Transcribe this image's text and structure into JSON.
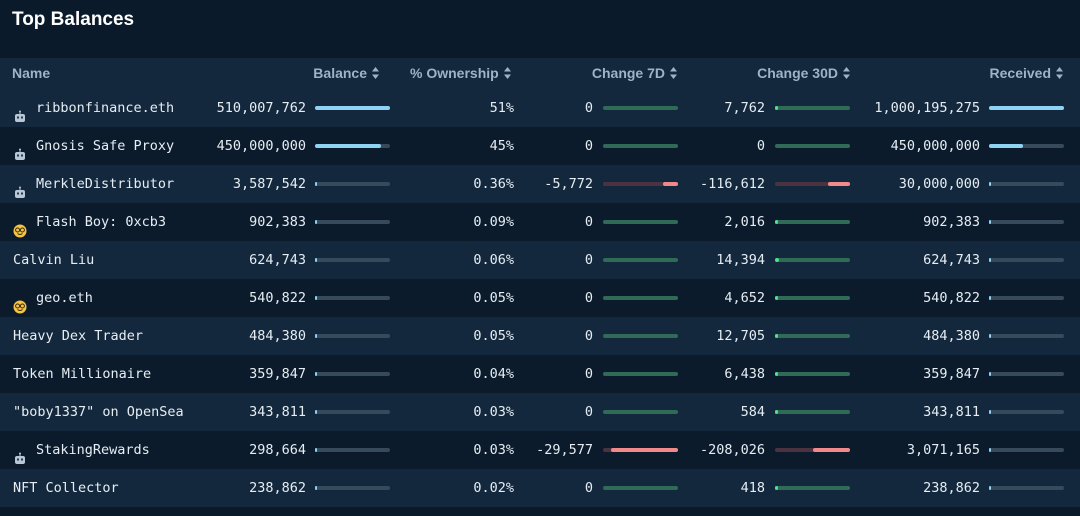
{
  "page_title": "Top Balances",
  "columns": {
    "name": "Name",
    "balance": "Balance",
    "ownership": "% Ownership",
    "change7d": "Change 7D",
    "change30d": "Change 30D",
    "received": "Received"
  },
  "colors": {
    "positive_bar": "#8fd3f4",
    "change_positive": "#2f6b57",
    "change_positive_dot": "#4ee08a",
    "change_negative": "#f08a8a",
    "bar_track": "#374a5c"
  },
  "rows": [
    {
      "icon": "robot-icon",
      "name": "ribbonfinance.eth",
      "balance": "510,007,762",
      "balance_frac": 1.0,
      "ownership": "51%",
      "change7d": "0",
      "change7d_dir": "zero",
      "change7d_frac": 0,
      "change30d": "7,762",
      "change30d_dir": "pos",
      "change30d_frac": 0.03,
      "received": "1,000,195,275",
      "received_frac": 1.0
    },
    {
      "icon": "robot-icon",
      "name": "Gnosis Safe Proxy",
      "balance": "450,000,000",
      "balance_frac": 0.88,
      "ownership": "45%",
      "change7d": "0",
      "change7d_dir": "zero",
      "change7d_frac": 0,
      "change30d": "0",
      "change30d_dir": "zero",
      "change30d_frac": 0,
      "received": "450,000,000",
      "received_frac": 0.45
    },
    {
      "icon": "robot-icon",
      "name": "MerkleDistributor",
      "balance": "3,587,542",
      "balance_frac": 0.01,
      "ownership": "0.36%",
      "change7d": "-5,772",
      "change7d_dir": "neg",
      "change7d_frac": 0.2,
      "change30d": "-116,612",
      "change30d_dir": "neg",
      "change30d_frac": 0.3,
      "received": "30,000,000",
      "received_frac": 0.03
    },
    {
      "icon": "nerd-face-icon",
      "name": "Flash Boy: 0xcb3",
      "balance": "902,383",
      "balance_frac": 0.01,
      "ownership": "0.09%",
      "change7d": "0",
      "change7d_dir": "zero",
      "change7d_frac": 0,
      "change30d": "2,016",
      "change30d_dir": "pos",
      "change30d_frac": 0.01,
      "received": "902,383",
      "received_frac": 0.01
    },
    {
      "icon": "",
      "name": "Calvin Liu",
      "balance": "624,743",
      "balance_frac": 0.01,
      "ownership": "0.06%",
      "change7d": "0",
      "change7d_dir": "zero",
      "change7d_frac": 0,
      "change30d": "14,394",
      "change30d_dir": "pos",
      "change30d_frac": 0.05,
      "received": "624,743",
      "received_frac": 0.005
    },
    {
      "icon": "nerd-face-icon",
      "name": "geo.eth",
      "balance": "540,822",
      "balance_frac": 0.01,
      "ownership": "0.05%",
      "change7d": "0",
      "change7d_dir": "zero",
      "change7d_frac": 0,
      "change30d": "4,652",
      "change30d_dir": "pos",
      "change30d_frac": 0.02,
      "received": "540,822",
      "received_frac": 0.005
    },
    {
      "icon": "",
      "name": "Heavy Dex Trader",
      "balance": "484,380",
      "balance_frac": 0.005,
      "ownership": "0.05%",
      "change7d": "0",
      "change7d_dir": "zero",
      "change7d_frac": 0,
      "change30d": "12,705",
      "change30d_dir": "pos",
      "change30d_frac": 0.04,
      "received": "484,380",
      "received_frac": 0.005
    },
    {
      "icon": "",
      "name": "Token Millionaire",
      "balance": "359,847",
      "balance_frac": 0.005,
      "ownership": "0.04%",
      "change7d": "0",
      "change7d_dir": "zero",
      "change7d_frac": 0,
      "change30d": "6,438",
      "change30d_dir": "pos",
      "change30d_frac": 0.02,
      "received": "359,847",
      "received_frac": 0.005
    },
    {
      "icon": "",
      "name": "\"boby1337\" on OpenSea",
      "balance": "343,811",
      "balance_frac": 0.005,
      "ownership": "0.03%",
      "change7d": "0",
      "change7d_dir": "zero",
      "change7d_frac": 0,
      "change30d": "584",
      "change30d_dir": "pos",
      "change30d_frac": 0.0,
      "received": "343,811",
      "received_frac": 0.005
    },
    {
      "icon": "robot-icon",
      "name": "StakingRewards",
      "balance": "298,664",
      "balance_frac": 0.005,
      "ownership": "0.03%",
      "change7d": "-29,577",
      "change7d_dir": "neg",
      "change7d_frac": 0.9,
      "change30d": "-208,026",
      "change30d_dir": "neg",
      "change30d_frac": 0.5,
      "received": "3,071,165",
      "received_frac": 0.005
    },
    {
      "icon": "",
      "name": "NFT Collector",
      "balance": "238,862",
      "balance_frac": 0.005,
      "ownership": "0.02%",
      "change7d": "0",
      "change7d_dir": "zero",
      "change7d_frac": 0,
      "change30d": "418",
      "change30d_dir": "pos",
      "change30d_frac": 0.0,
      "received": "238,862",
      "received_frac": 0.005
    }
  ]
}
